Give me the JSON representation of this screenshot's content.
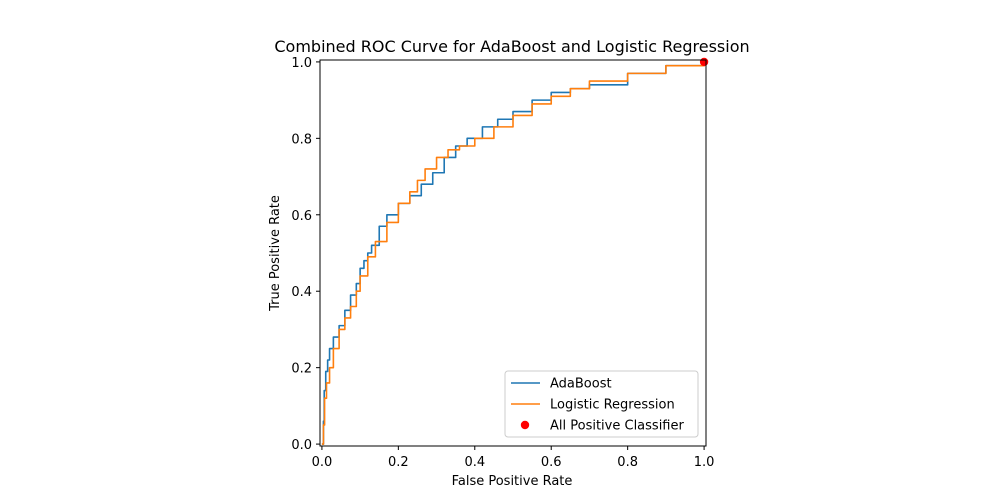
{
  "chart_data": {
    "type": "line",
    "title": "Combined ROC Curve for AdaBoost and Logistic Regression",
    "xlabel": "False Positive Rate",
    "ylabel": "True Positive Rate",
    "xlim": [
      -0.005,
      1.005
    ],
    "ylim": [
      -0.005,
      1.005
    ],
    "xticks": [
      "0.0",
      "0.2",
      "0.4",
      "0.6",
      "0.8",
      "1.0"
    ],
    "yticks": [
      "0.0",
      "0.2",
      "0.4",
      "0.6",
      "0.8",
      "1.0"
    ],
    "grid": false,
    "legend_position": "lower-right",
    "series": [
      {
        "name": "AdaBoost",
        "kind": "line",
        "color": "#1f77b4",
        "x": [
          0.0,
          0.004,
          0.006,
          0.01,
          0.015,
          0.02,
          0.03,
          0.045,
          0.06,
          0.075,
          0.09,
          0.1,
          0.11,
          0.12,
          0.13,
          0.15,
          0.17,
          0.2,
          0.23,
          0.26,
          0.29,
          0.32,
          0.35,
          0.38,
          0.42,
          0.46,
          0.5,
          0.55,
          0.6,
          0.65,
          0.7,
          0.8,
          0.9,
          1.0
        ],
        "y": [
          0.0,
          0.06,
          0.14,
          0.19,
          0.22,
          0.25,
          0.28,
          0.31,
          0.35,
          0.39,
          0.42,
          0.46,
          0.48,
          0.5,
          0.52,
          0.57,
          0.6,
          0.63,
          0.65,
          0.68,
          0.71,
          0.75,
          0.78,
          0.8,
          0.83,
          0.85,
          0.87,
          0.9,
          0.92,
          0.93,
          0.94,
          0.97,
          0.99,
          1.0
        ]
      },
      {
        "name": "Logistic Regression",
        "kind": "line",
        "color": "#ff7f0e",
        "x": [
          0.0,
          0.004,
          0.007,
          0.012,
          0.02,
          0.03,
          0.045,
          0.06,
          0.075,
          0.09,
          0.1,
          0.12,
          0.14,
          0.17,
          0.2,
          0.23,
          0.25,
          0.27,
          0.3,
          0.33,
          0.36,
          0.4,
          0.45,
          0.5,
          0.55,
          0.6,
          0.65,
          0.7,
          0.8,
          0.9,
          1.0
        ],
        "y": [
          0.0,
          0.05,
          0.12,
          0.16,
          0.2,
          0.25,
          0.3,
          0.33,
          0.36,
          0.4,
          0.44,
          0.49,
          0.53,
          0.58,
          0.63,
          0.66,
          0.69,
          0.72,
          0.75,
          0.77,
          0.78,
          0.8,
          0.83,
          0.86,
          0.89,
          0.91,
          0.93,
          0.95,
          0.97,
          0.99,
          1.0
        ]
      },
      {
        "name": "All Positive Classifier",
        "kind": "scatter",
        "color": "#ff0000",
        "x": [
          1.0
        ],
        "y": [
          1.0
        ]
      }
    ]
  }
}
